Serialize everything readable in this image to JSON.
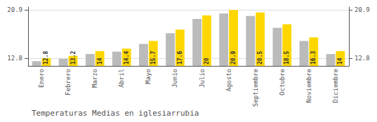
{
  "chart_data": {
    "type": "bar",
    "title": "Temperaturas Medias en iglesiarrubia",
    "categories": [
      "Enero",
      "Febrero",
      "Marzo",
      "Abril",
      "Mayo",
      "Junio",
      "Julio",
      "Agosto",
      "Septiembre",
      "Octubre",
      "Noviembre",
      "Diciembre"
    ],
    "series": [
      {
        "color": "#BBBBBB",
        "values": [
          12.3,
          12.7,
          13.5,
          13.9,
          15.2,
          17.0,
          19.4,
          20.3,
          19.9,
          17.9,
          15.7,
          13.5
        ]
      },
      {
        "color": "#FFD700",
        "values": [
          12.8,
          13.2,
          14.0,
          14.4,
          15.7,
          17.6,
          20.0,
          20.9,
          20.5,
          18.5,
          16.3,
          14.0
        ],
        "data_labels": true
      }
    ],
    "ylim": [
      11.5,
      21.4
    ],
    "yticks": [
      12.8,
      20.9
    ],
    "y2lim": [
      11.5,
      21.4
    ],
    "y2ticks": [
      12.8,
      20.9
    ],
    "grid": true
  }
}
